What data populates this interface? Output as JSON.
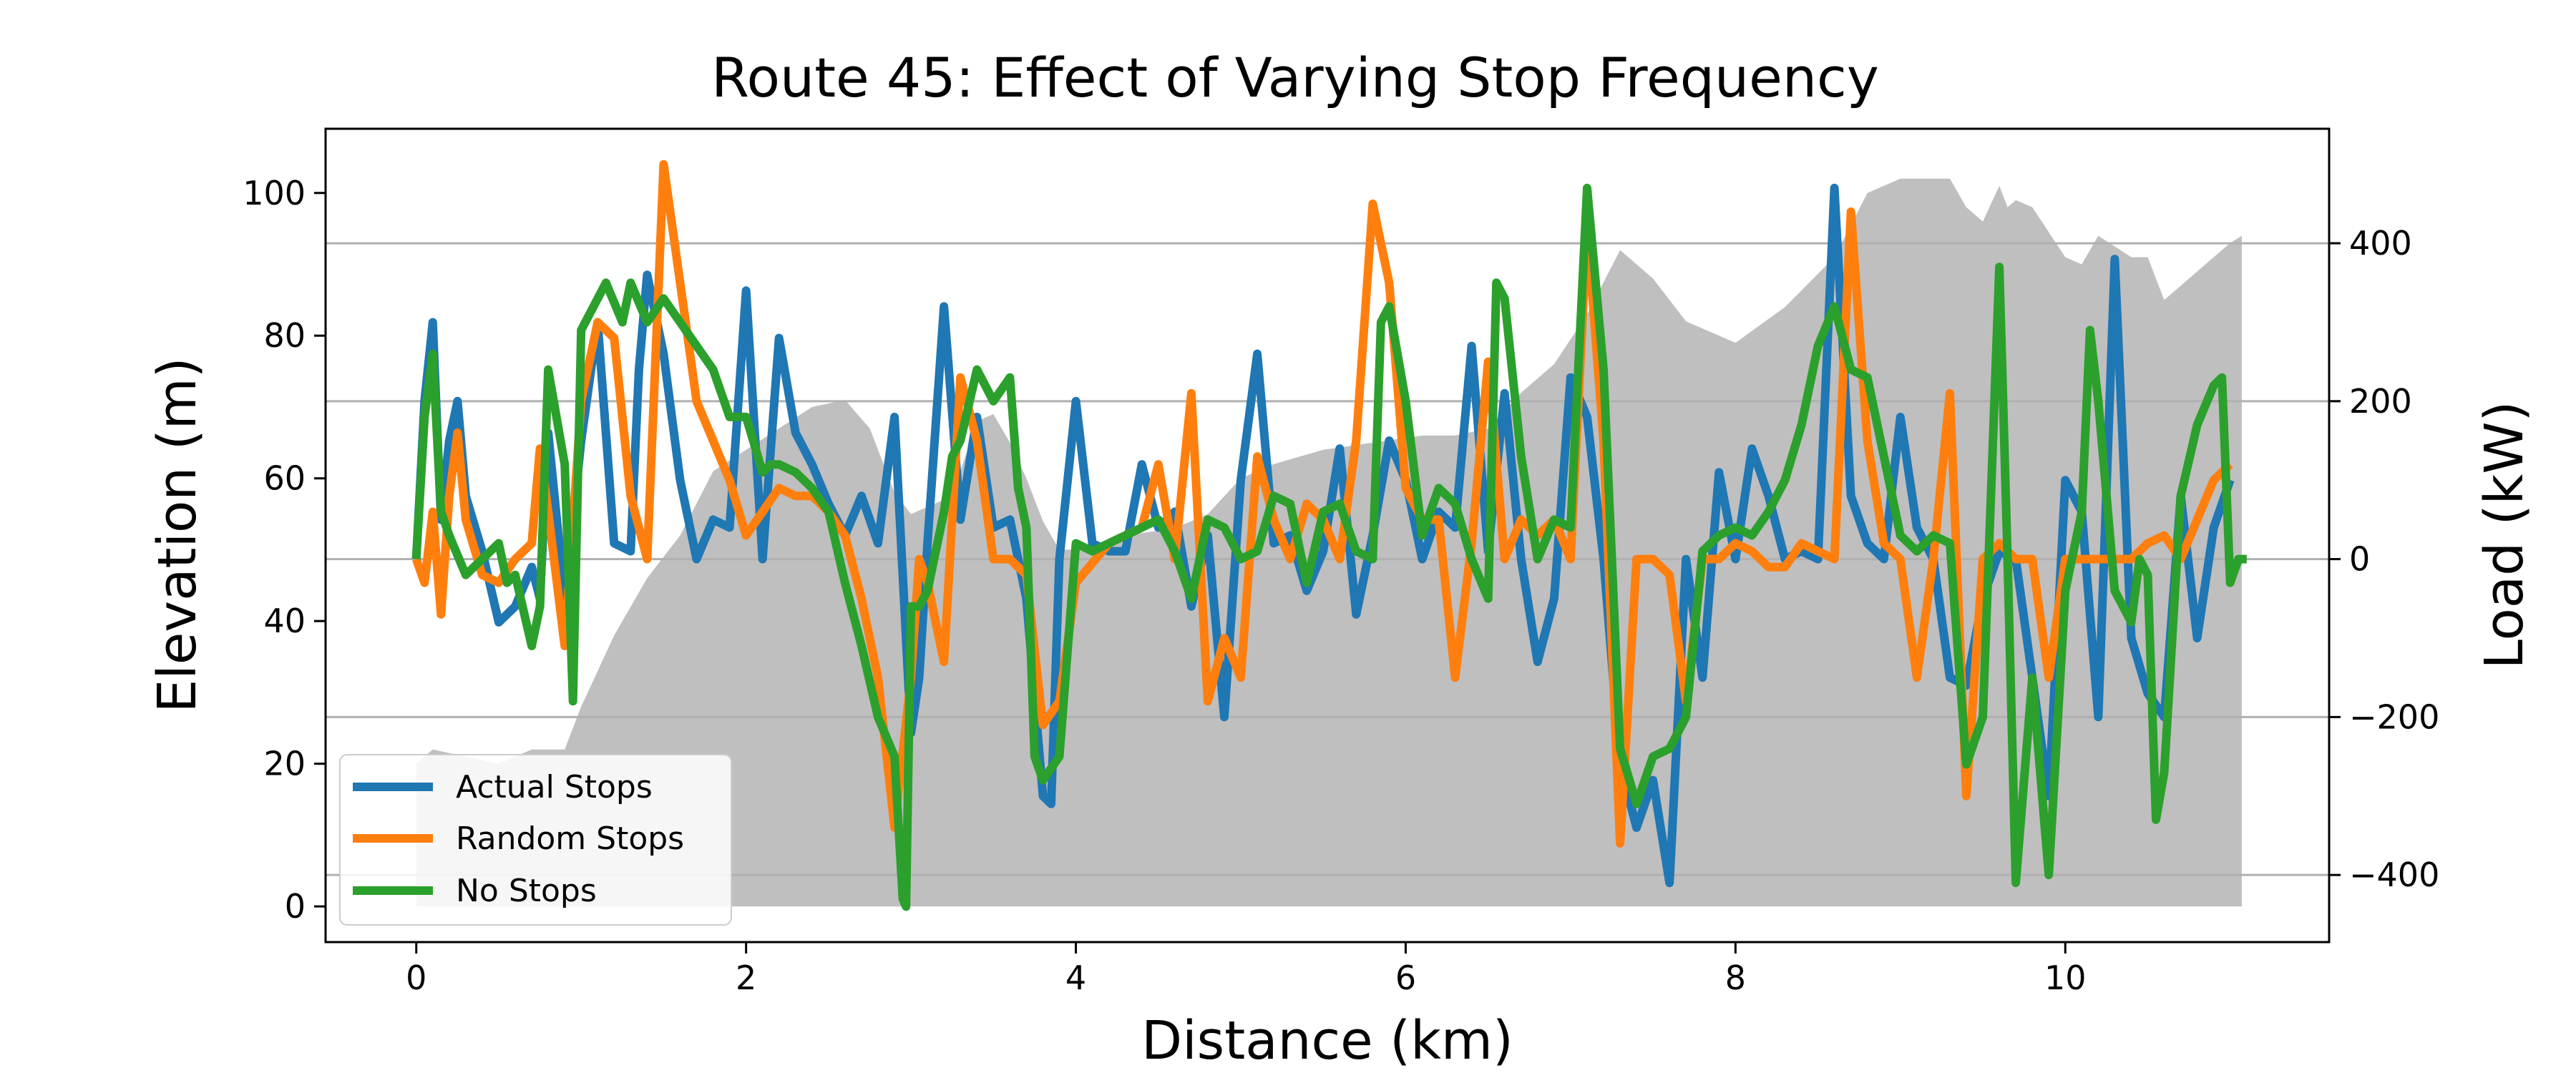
{
  "chart_data": {
    "type": "line",
    "title": "Route 45: Effect of Varying Stop Frequency",
    "xlabel": "Distance (km)",
    "ylabel": "Elevation (m)",
    "y2label": "Load (kW)",
    "xlim": [
      -0.55,
      11.6
    ],
    "ylim": [
      -5,
      109
    ],
    "y2lim": [
      -485,
      545
    ],
    "xticks": [
      0,
      2,
      4,
      6,
      8,
      10
    ],
    "yticks": [
      0,
      20,
      40,
      60,
      80,
      100
    ],
    "y2ticks": [
      -400,
      -200,
      0,
      200,
      400
    ],
    "y2tick_labels": [
      "−400",
      "−200",
      "0",
      "200",
      "400"
    ],
    "grid": "horizontal on right axis",
    "legend_position": "lower-left",
    "colors": {
      "elevation": "#bfbfbf",
      "actual": "#1f77b4",
      "random": "#ff7f0e",
      "nostops": "#2ca02c",
      "grid": "#b0b0b0",
      "frame": "#000000"
    },
    "elevation": {
      "x": [
        0.0,
        0.1,
        0.3,
        0.5,
        0.7,
        0.9,
        1.0,
        1.2,
        1.4,
        1.6,
        1.8,
        2.0,
        2.2,
        2.4,
        2.6,
        2.75,
        2.9,
        3.0,
        3.1,
        3.2,
        3.3,
        3.4,
        3.5,
        3.6,
        3.7,
        3.8,
        3.9,
        4.1,
        4.3,
        4.6,
        4.8,
        5.0,
        5.2,
        5.5,
        5.8,
        6.1,
        6.3,
        6.5,
        6.7,
        6.9,
        7.1,
        7.3,
        7.5,
        7.7,
        8.0,
        8.3,
        8.6,
        8.8,
        9.0,
        9.2,
        9.3,
        9.4,
        9.5,
        9.6,
        9.65,
        9.7,
        9.8,
        10.0,
        10.1,
        10.2,
        10.4,
        10.5,
        10.6,
        10.7,
        10.8,
        10.9,
        11.0,
        11.07
      ],
      "y": [
        20,
        22,
        21,
        20,
        22,
        22,
        28,
        38,
        46,
        52,
        61,
        64,
        67,
        70,
        71,
        67,
        58,
        55,
        56,
        57,
        61,
        68,
        69,
        65,
        60,
        54,
        50,
        50,
        52,
        53,
        55,
        60,
        62,
        64,
        65,
        66,
        66,
        67,
        72,
        76,
        83,
        92,
        88,
        82,
        79,
        84,
        91,
        100,
        102,
        102,
        102,
        98,
        96,
        101,
        98,
        99,
        98,
        91,
        90,
        94,
        91,
        91,
        85,
        87,
        89,
        91,
        93,
        94
      ]
    },
    "series": [
      {
        "name": "Actual Stops",
        "x": [
          0.0,
          0.05,
          0.1,
          0.15,
          0.2,
          0.25,
          0.3,
          0.4,
          0.5,
          0.6,
          0.7,
          0.75,
          0.8,
          0.9,
          1.0,
          1.1,
          1.2,
          1.3,
          1.35,
          1.4,
          1.5,
          1.6,
          1.7,
          1.8,
          1.9,
          2.0,
          2.1,
          2.2,
          2.3,
          2.4,
          2.5,
          2.6,
          2.7,
          2.8,
          2.9,
          3.0,
          3.05,
          3.1,
          3.2,
          3.3,
          3.4,
          3.5,
          3.6,
          3.7,
          3.8,
          3.85,
          3.9,
          4.0,
          4.1,
          4.2,
          4.3,
          4.4,
          4.5,
          4.6,
          4.7,
          4.8,
          4.9,
          5.0,
          5.1,
          5.2,
          5.3,
          5.4,
          5.5,
          5.6,
          5.7,
          5.8,
          5.9,
          6.0,
          6.1,
          6.2,
          6.3,
          6.4,
          6.5,
          6.6,
          6.7,
          6.8,
          6.9,
          7.0,
          7.1,
          7.2,
          7.3,
          7.4,
          7.5,
          7.6,
          7.7,
          7.8,
          7.9,
          8.0,
          8.1,
          8.2,
          8.3,
          8.4,
          8.5,
          8.6,
          8.7,
          8.8,
          8.9,
          9.0,
          9.1,
          9.2,
          9.3,
          9.4,
          9.5,
          9.6,
          9.7,
          9.8,
          9.9,
          10.0,
          10.1,
          10.2,
          10.3,
          10.4,
          10.5,
          10.6,
          10.7,
          10.8,
          10.9,
          11.0
        ],
        "y": [
          0,
          200,
          300,
          50,
          150,
          200,
          80,
          10,
          -80,
          -60,
          -10,
          -50,
          160,
          -50,
          150,
          300,
          20,
          10,
          240,
          360,
          260,
          100,
          0,
          50,
          40,
          340,
          0,
          280,
          160,
          120,
          70,
          30,
          80,
          20,
          180,
          -220,
          -150,
          20,
          320,
          50,
          180,
          40,
          50,
          -50,
          -300,
          -310,
          0,
          200,
          20,
          10,
          10,
          120,
          40,
          60,
          -60,
          30,
          -200,
          100,
          260,
          20,
          30,
          -40,
          10,
          140,
          -70,
          30,
          150,
          100,
          0,
          60,
          40,
          270,
          10,
          210,
          0,
          -130,
          -50,
          230,
          180,
          0,
          -260,
          -340,
          -280,
          -410,
          0,
          -150,
          110,
          0,
          140,
          80,
          0,
          10,
          0,
          470,
          80,
          20,
          0,
          180,
          40,
          0,
          -150,
          -160,
          -50,
          10,
          0,
          -150,
          -300,
          100,
          60,
          -200,
          380,
          -100,
          -170,
          -200,
          80,
          -100,
          40,
          100
        ]
      },
      {
        "name": "Random Stops",
        "x": [
          0.0,
          0.05,
          0.1,
          0.15,
          0.2,
          0.25,
          0.3,
          0.4,
          0.5,
          0.6,
          0.7,
          0.75,
          0.8,
          0.9,
          1.0,
          1.1,
          1.2,
          1.3,
          1.4,
          1.5,
          1.6,
          1.7,
          1.8,
          1.9,
          2.0,
          2.1,
          2.2,
          2.3,
          2.4,
          2.5,
          2.6,
          2.7,
          2.8,
          2.9,
          3.0,
          3.05,
          3.1,
          3.2,
          3.3,
          3.4,
          3.5,
          3.6,
          3.7,
          3.8,
          3.9,
          4.0,
          4.2,
          4.4,
          4.5,
          4.6,
          4.7,
          4.8,
          4.9,
          5.0,
          5.1,
          5.2,
          5.3,
          5.4,
          5.5,
          5.6,
          5.7,
          5.8,
          5.9,
          6.0,
          6.1,
          6.2,
          6.3,
          6.4,
          6.5,
          6.6,
          6.7,
          6.8,
          6.9,
          7.0,
          7.1,
          7.2,
          7.3,
          7.4,
          7.5,
          7.6,
          7.7,
          7.8,
          7.9,
          8.0,
          8.1,
          8.2,
          8.3,
          8.4,
          8.5,
          8.6,
          8.7,
          8.8,
          8.9,
          9.0,
          9.1,
          9.2,
          9.3,
          9.4,
          9.5,
          9.6,
          9.7,
          9.8,
          9.9,
          10.0,
          10.1,
          10.2,
          10.3,
          10.4,
          10.5,
          10.6,
          10.7,
          10.8,
          10.9,
          11.0
        ],
        "y": [
          0,
          -30,
          60,
          -70,
          80,
          160,
          50,
          -20,
          -30,
          0,
          20,
          140,
          60,
          -110,
          200,
          300,
          280,
          80,
          0,
          500,
          350,
          200,
          150,
          100,
          30,
          60,
          90,
          80,
          80,
          60,
          30,
          -50,
          -150,
          -340,
          -150,
          0,
          -30,
          -130,
          230,
          150,
          0,
          0,
          -20,
          -210,
          -180,
          -30,
          20,
          40,
          120,
          0,
          210,
          -180,
          -100,
          -150,
          130,
          50,
          0,
          70,
          50,
          0,
          150,
          450,
          350,
          90,
          50,
          50,
          -150,
          20,
          250,
          0,
          50,
          30,
          50,
          0,
          420,
          150,
          -360,
          0,
          0,
          -20,
          -180,
          0,
          0,
          20,
          10,
          -10,
          -10,
          20,
          10,
          0,
          440,
          150,
          20,
          0,
          -150,
          0,
          210,
          -300,
          0,
          20,
          0,
          0,
          -150,
          0,
          0,
          0,
          0,
          0,
          20,
          30,
          0,
          50,
          100,
          120
        ]
      },
      {
        "name": "No Stops",
        "x": [
          0.0,
          0.05,
          0.1,
          0.15,
          0.2,
          0.3,
          0.4,
          0.5,
          0.55,
          0.6,
          0.7,
          0.75,
          0.8,
          0.9,
          0.95,
          1.0,
          1.15,
          1.25,
          1.3,
          1.4,
          1.5,
          1.6,
          1.7,
          1.8,
          1.9,
          2.0,
          2.1,
          2.15,
          2.2,
          2.3,
          2.4,
          2.5,
          2.6,
          2.7,
          2.8,
          2.9,
          2.95,
          2.97,
          3.0,
          3.05,
          3.1,
          3.2,
          3.25,
          3.3,
          3.4,
          3.5,
          3.6,
          3.65,
          3.7,
          3.75,
          3.8,
          3.9,
          4.0,
          4.1,
          4.2,
          4.3,
          4.4,
          4.5,
          4.6,
          4.7,
          4.8,
          4.9,
          5.0,
          5.1,
          5.2,
          5.3,
          5.4,
          5.5,
          5.6,
          5.7,
          5.8,
          5.85,
          5.9,
          6.0,
          6.1,
          6.2,
          6.3,
          6.4,
          6.5,
          6.55,
          6.6,
          6.7,
          6.8,
          6.9,
          7.0,
          7.1,
          7.2,
          7.3,
          7.4,
          7.5,
          7.6,
          7.7,
          7.8,
          7.9,
          8.0,
          8.1,
          8.2,
          8.3,
          8.4,
          8.5,
          8.6,
          8.7,
          8.8,
          8.9,
          9.0,
          9.1,
          9.2,
          9.3,
          9.4,
          9.5,
          9.6,
          9.65,
          9.7,
          9.8,
          9.9,
          10.0,
          10.1,
          10.15,
          10.2,
          10.3,
          10.4,
          10.45,
          10.5,
          10.55,
          10.6,
          10.7,
          10.8,
          10.9,
          10.95,
          11.0,
          11.05,
          11.1
        ],
        "y": [
          0,
          180,
          260,
          60,
          30,
          -20,
          0,
          20,
          -30,
          -20,
          -110,
          -60,
          240,
          120,
          -180,
          290,
          350,
          300,
          350,
          300,
          330,
          300,
          270,
          240,
          180,
          180,
          110,
          120,
          120,
          110,
          90,
          60,
          -30,
          -110,
          -200,
          -250,
          -430,
          -440,
          -60,
          -60,
          -40,
          60,
          130,
          150,
          240,
          200,
          230,
          90,
          40,
          -250,
          -280,
          -250,
          20,
          10,
          20,
          30,
          40,
          50,
          10,
          -50,
          50,
          40,
          0,
          10,
          80,
          70,
          -30,
          60,
          70,
          10,
          0,
          300,
          320,
          200,
          30,
          90,
          70,
          0,
          -50,
          350,
          330,
          130,
          0,
          50,
          40,
          470,
          240,
          -240,
          -310,
          -250,
          -240,
          -200,
          10,
          30,
          40,
          30,
          60,
          100,
          170,
          270,
          320,
          240,
          230,
          130,
          30,
          10,
          30,
          20,
          -260,
          -200,
          370,
          0,
          -410,
          -150,
          -400,
          -40,
          60,
          290,
          200,
          -40,
          -80,
          0,
          -20,
          -330,
          -270,
          80,
          170,
          220,
          230,
          -30,
          0,
          0
        ]
      }
    ]
  }
}
